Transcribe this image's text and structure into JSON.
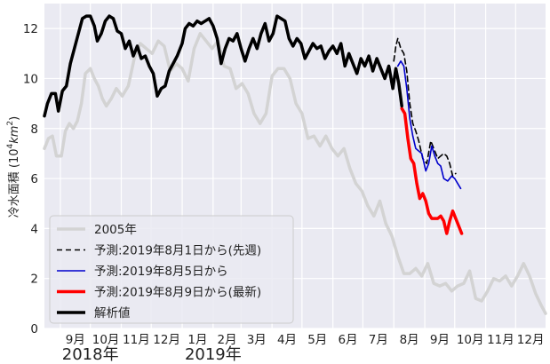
{
  "chart_data": {
    "type": "line",
    "title": "",
    "ylabel_main": "冷水面積 (10",
    "ylabel_sup": "4",
    "ylabel_unit": "km",
    "ylabel_unit_sup": "2",
    "ylabel_close": ")",
    "ylim": [
      0,
      13
    ],
    "yticks": [
      0,
      2,
      4,
      6,
      8,
      10,
      12
    ],
    "xlim": [
      "2018-08-16",
      "2019-12-31"
    ],
    "xticks": [
      {
        "date": "2018-09-01",
        "label": "9月"
      },
      {
        "date": "2018-10-01",
        "label": "10月"
      },
      {
        "date": "2018-11-01",
        "label": "11月"
      },
      {
        "date": "2018-12-01",
        "label": "12月"
      },
      {
        "date": "2019-01-01",
        "label": "1月"
      },
      {
        "date": "2019-02-01",
        "label": "2月"
      },
      {
        "date": "2019-03-01",
        "label": "3月"
      },
      {
        "date": "2019-04-01",
        "label": "4月"
      },
      {
        "date": "2019-05-01",
        "label": "5月"
      },
      {
        "date": "2019-06-01",
        "label": "6月"
      },
      {
        "date": "2019-07-01",
        "label": "7月"
      },
      {
        "date": "2019-08-01",
        "label": "8月"
      },
      {
        "date": "2019-09-01",
        "label": "9月"
      },
      {
        "date": "2019-10-01",
        "label": "10月"
      },
      {
        "date": "2019-11-01",
        "label": "11月"
      },
      {
        "date": "2019-12-01",
        "label": "12月"
      }
    ],
    "year_labels": [
      {
        "date": "2018-10-01",
        "label": "2018年"
      },
      {
        "date": "2019-02-01",
        "label": "2019年"
      }
    ],
    "grid": true,
    "legend_position": "bottom-left",
    "series": [
      {
        "name": "2005年",
        "color": "#d3d3d3",
        "dash": "",
        "width": 3.5,
        "points": [
          [
            "2018-08-16",
            7.2
          ],
          [
            "2018-08-20",
            7.6
          ],
          [
            "2018-08-24",
            7.7
          ],
          [
            "2018-08-28",
            6.9
          ],
          [
            "2018-09-02",
            6.9
          ],
          [
            "2018-09-06",
            7.9
          ],
          [
            "2018-09-10",
            8.2
          ],
          [
            "2018-09-14",
            8.0
          ],
          [
            "2018-09-18",
            8.3
          ],
          [
            "2018-09-22",
            9.0
          ],
          [
            "2018-09-26",
            10.2
          ],
          [
            "2018-10-01",
            10.4
          ],
          [
            "2018-10-05",
            10.0
          ],
          [
            "2018-10-09",
            9.7
          ],
          [
            "2018-10-13",
            9.2
          ],
          [
            "2018-10-17",
            8.9
          ],
          [
            "2018-10-22",
            9.2
          ],
          [
            "2018-10-27",
            9.6
          ],
          [
            "2018-11-02",
            9.3
          ],
          [
            "2018-11-08",
            9.7
          ],
          [
            "2018-11-14",
            10.8
          ],
          [
            "2018-11-20",
            11.4
          ],
          [
            "2018-11-26",
            11.2
          ],
          [
            "2018-12-02",
            11.0
          ],
          [
            "2018-12-08",
            11.5
          ],
          [
            "2018-12-14",
            11.3
          ],
          [
            "2018-12-20",
            10.3
          ],
          [
            "2018-12-26",
            10.6
          ],
          [
            "2019-01-01",
            10.4
          ],
          [
            "2019-01-07",
            9.9
          ],
          [
            "2019-01-13",
            11.2
          ],
          [
            "2019-01-19",
            11.8
          ],
          [
            "2019-01-25",
            11.5
          ],
          [
            "2019-01-31",
            11.2
          ],
          [
            "2019-02-06",
            11.5
          ],
          [
            "2019-02-12",
            10.5
          ],
          [
            "2019-02-18",
            10.4
          ],
          [
            "2019-02-24",
            9.6
          ],
          [
            "2019-03-02",
            9.8
          ],
          [
            "2019-03-08",
            9.4
          ],
          [
            "2019-03-14",
            8.6
          ],
          [
            "2019-03-20",
            8.2
          ],
          [
            "2019-03-26",
            8.6
          ],
          [
            "2019-04-01",
            10.1
          ],
          [
            "2019-04-07",
            10.4
          ],
          [
            "2019-04-13",
            10.4
          ],
          [
            "2019-04-19",
            10.0
          ],
          [
            "2019-04-25",
            9.0
          ],
          [
            "2019-05-01",
            8.6
          ],
          [
            "2019-05-07",
            7.6
          ],
          [
            "2019-05-13",
            7.7
          ],
          [
            "2019-05-19",
            7.3
          ],
          [
            "2019-05-25",
            7.7
          ],
          [
            "2019-05-31",
            7.2
          ],
          [
            "2019-06-06",
            6.9
          ],
          [
            "2019-06-12",
            7.2
          ],
          [
            "2019-06-18",
            6.4
          ],
          [
            "2019-06-24",
            5.8
          ],
          [
            "2019-06-30",
            5.5
          ],
          [
            "2019-07-06",
            4.9
          ],
          [
            "2019-07-12",
            4.5
          ],
          [
            "2019-07-18",
            5.1
          ],
          [
            "2019-07-24",
            4.2
          ],
          [
            "2019-07-30",
            3.7
          ],
          [
            "2019-08-05",
            2.9
          ],
          [
            "2019-08-11",
            2.2
          ],
          [
            "2019-08-17",
            2.2
          ],
          [
            "2019-08-23",
            2.4
          ],
          [
            "2019-08-29",
            2.1
          ],
          [
            "2019-09-04",
            2.6
          ],
          [
            "2019-09-10",
            1.8
          ],
          [
            "2019-09-16",
            1.7
          ],
          [
            "2019-09-22",
            1.8
          ],
          [
            "2019-09-28",
            1.5
          ],
          [
            "2019-10-04",
            1.7
          ],
          [
            "2019-10-10",
            1.8
          ],
          [
            "2019-10-16",
            2.3
          ],
          [
            "2019-10-22",
            1.2
          ],
          [
            "2019-10-28",
            1.1
          ],
          [
            "2019-11-03",
            1.5
          ],
          [
            "2019-11-09",
            2.0
          ],
          [
            "2019-11-15",
            1.9
          ],
          [
            "2019-11-21",
            2.1
          ],
          [
            "2019-11-27",
            1.7
          ],
          [
            "2019-12-03",
            2.1
          ],
          [
            "2019-12-09",
            2.6
          ],
          [
            "2019-12-15",
            2.1
          ],
          [
            "2019-12-21",
            1.4
          ],
          [
            "2019-12-27",
            0.9
          ],
          [
            "2019-12-31",
            0.6
          ]
        ]
      },
      {
        "name": "予測:2019年8月1日から(先週)",
        "color": "#000000",
        "dash": "6,4",
        "width": 1.6,
        "points": [
          [
            "2019-08-01",
            10.7
          ],
          [
            "2019-08-03",
            11.3
          ],
          [
            "2019-08-05",
            11.6
          ],
          [
            "2019-08-08",
            11.2
          ],
          [
            "2019-08-11",
            11.0
          ],
          [
            "2019-08-14",
            10.3
          ],
          [
            "2019-08-17",
            9.0
          ],
          [
            "2019-08-20",
            8.2
          ],
          [
            "2019-08-23",
            7.9
          ],
          [
            "2019-08-26",
            7.5
          ],
          [
            "2019-08-30",
            6.8
          ],
          [
            "2019-09-03",
            6.6
          ],
          [
            "2019-09-07",
            7.5
          ],
          [
            "2019-09-10",
            7.2
          ],
          [
            "2019-09-14",
            6.8
          ],
          [
            "2019-09-17",
            6.9
          ],
          [
            "2019-09-20",
            7.0
          ],
          [
            "2019-09-23",
            6.9
          ],
          [
            "2019-09-26",
            6.6
          ],
          [
            "2019-09-29",
            6.1
          ],
          [
            "2019-10-02",
            6.2
          ]
        ]
      },
      {
        "name": "予測:2019年8月5日から",
        "color": "#0000cc",
        "dash": "",
        "width": 1.6,
        "points": [
          [
            "2019-08-05",
            10.5
          ],
          [
            "2019-08-08",
            10.7
          ],
          [
            "2019-08-11",
            10.5
          ],
          [
            "2019-08-14",
            9.6
          ],
          [
            "2019-08-17",
            8.4
          ],
          [
            "2019-08-20",
            7.7
          ],
          [
            "2019-08-23",
            7.2
          ],
          [
            "2019-08-26",
            7.1
          ],
          [
            "2019-08-29",
            7.0
          ],
          [
            "2019-09-02",
            6.3
          ],
          [
            "2019-09-05",
            6.6
          ],
          [
            "2019-09-08",
            7.3
          ],
          [
            "2019-09-11",
            6.9
          ],
          [
            "2019-09-14",
            6.6
          ],
          [
            "2019-09-17",
            6.5
          ],
          [
            "2019-09-20",
            6.0
          ],
          [
            "2019-09-24",
            5.9
          ],
          [
            "2019-09-28",
            6.1
          ],
          [
            "2019-10-01",
            6.0
          ],
          [
            "2019-10-04",
            5.8
          ],
          [
            "2019-10-07",
            5.6
          ]
        ]
      },
      {
        "name": "予測:2019年8月9日から(最新)",
        "color": "#ff0000",
        "dash": "",
        "width": 3.5,
        "points": [
          [
            "2019-08-09",
            8.8
          ],
          [
            "2019-08-12",
            8.6
          ],
          [
            "2019-08-15",
            7.6
          ],
          [
            "2019-08-18",
            6.8
          ],
          [
            "2019-08-21",
            6.6
          ],
          [
            "2019-08-24",
            5.8
          ],
          [
            "2019-08-27",
            5.2
          ],
          [
            "2019-08-30",
            5.4
          ],
          [
            "2019-09-02",
            5.1
          ],
          [
            "2019-09-05",
            4.6
          ],
          [
            "2019-09-08",
            4.4
          ],
          [
            "2019-09-11",
            4.4
          ],
          [
            "2019-09-14",
            4.4
          ],
          [
            "2019-09-17",
            4.5
          ],
          [
            "2019-09-20",
            4.3
          ],
          [
            "2019-09-23",
            3.8
          ],
          [
            "2019-09-26",
            4.3
          ],
          [
            "2019-09-29",
            4.7
          ],
          [
            "2019-10-02",
            4.4
          ],
          [
            "2019-10-05",
            4.1
          ],
          [
            "2019-10-08",
            3.8
          ]
        ]
      },
      {
        "name": "解析値",
        "color": "#000000",
        "dash": "",
        "width": 3.5,
        "points": [
          [
            "2018-08-16",
            8.5
          ],
          [
            "2018-08-19",
            9.0
          ],
          [
            "2018-08-23",
            9.4
          ],
          [
            "2018-08-27",
            9.4
          ],
          [
            "2018-08-30",
            8.7
          ],
          [
            "2018-09-03",
            9.5
          ],
          [
            "2018-09-07",
            9.7
          ],
          [
            "2018-09-11",
            10.6
          ],
          [
            "2018-09-15",
            11.2
          ],
          [
            "2018-09-19",
            11.8
          ],
          [
            "2018-09-23",
            12.4
          ],
          [
            "2018-09-27",
            12.5
          ],
          [
            "2018-10-01",
            12.5
          ],
          [
            "2018-10-05",
            12.1
          ],
          [
            "2018-10-08",
            11.5
          ],
          [
            "2018-10-12",
            11.8
          ],
          [
            "2018-10-16",
            12.3
          ],
          [
            "2018-10-20",
            12.5
          ],
          [
            "2018-10-24",
            12.4
          ],
          [
            "2018-10-28",
            11.9
          ],
          [
            "2018-11-01",
            11.8
          ],
          [
            "2018-11-05",
            11.2
          ],
          [
            "2018-11-09",
            11.5
          ],
          [
            "2018-11-13",
            10.9
          ],
          [
            "2018-11-17",
            11.3
          ],
          [
            "2018-11-21",
            10.8
          ],
          [
            "2018-11-25",
            10.9
          ],
          [
            "2018-11-29",
            10.5
          ],
          [
            "2018-12-03",
            10.2
          ],
          [
            "2018-12-07",
            9.3
          ],
          [
            "2018-12-11",
            9.6
          ],
          [
            "2018-12-15",
            9.7
          ],
          [
            "2018-12-19",
            10.3
          ],
          [
            "2018-12-23",
            10.6
          ],
          [
            "2018-12-27",
            10.9
          ],
          [
            "2019-01-01",
            11.4
          ],
          [
            "2019-01-04",
            12.0
          ],
          [
            "2019-01-08",
            12.2
          ],
          [
            "2019-01-12",
            12.1
          ],
          [
            "2019-01-16",
            12.3
          ],
          [
            "2019-01-20",
            12.2
          ],
          [
            "2019-01-24",
            12.3
          ],
          [
            "2019-01-28",
            12.4
          ],
          [
            "2019-02-01",
            12.1
          ],
          [
            "2019-02-05",
            11.6
          ],
          [
            "2019-02-09",
            10.6
          ],
          [
            "2019-02-13",
            11.2
          ],
          [
            "2019-02-17",
            11.6
          ],
          [
            "2019-02-21",
            11.5
          ],
          [
            "2019-02-25",
            11.8
          ],
          [
            "2019-03-01",
            11.2
          ],
          [
            "2019-03-05",
            10.7
          ],
          [
            "2019-03-09",
            11.2
          ],
          [
            "2019-03-13",
            11.6
          ],
          [
            "2019-03-17",
            11.2
          ],
          [
            "2019-03-21",
            11.8
          ],
          [
            "2019-03-25",
            12.2
          ],
          [
            "2019-03-29",
            11.5
          ],
          [
            "2019-04-02",
            11.8
          ],
          [
            "2019-04-06",
            12.5
          ],
          [
            "2019-04-10",
            12.4
          ],
          [
            "2019-04-14",
            12.3
          ],
          [
            "2019-04-18",
            11.6
          ],
          [
            "2019-04-22",
            11.3
          ],
          [
            "2019-04-26",
            11.6
          ],
          [
            "2019-04-30",
            11.4
          ],
          [
            "2019-05-04",
            10.8
          ],
          [
            "2019-05-08",
            11.1
          ],
          [
            "2019-05-12",
            11.4
          ],
          [
            "2019-05-16",
            11.2
          ],
          [
            "2019-05-20",
            11.3
          ],
          [
            "2019-05-24",
            10.8
          ],
          [
            "2019-05-28",
            11.1
          ],
          [
            "2019-06-01",
            11.3
          ],
          [
            "2019-06-05",
            11.0
          ],
          [
            "2019-06-09",
            11.4
          ],
          [
            "2019-06-13",
            10.5
          ],
          [
            "2019-06-17",
            11.0
          ],
          [
            "2019-06-21",
            10.6
          ],
          [
            "2019-06-25",
            10.2
          ],
          [
            "2019-06-29",
            10.8
          ],
          [
            "2019-07-03",
            10.5
          ],
          [
            "2019-07-07",
            10.9
          ],
          [
            "2019-07-11",
            10.3
          ],
          [
            "2019-07-15",
            10.8
          ],
          [
            "2019-07-19",
            10.4
          ],
          [
            "2019-07-23",
            10.0
          ],
          [
            "2019-07-27",
            10.5
          ],
          [
            "2019-07-31",
            9.6
          ],
          [
            "2019-08-03",
            10.4
          ],
          [
            "2019-08-06",
            9.8
          ],
          [
            "2019-08-09",
            8.9
          ]
        ]
      }
    ],
    "legend_order": [
      0,
      1,
      2,
      3,
      4
    ]
  }
}
